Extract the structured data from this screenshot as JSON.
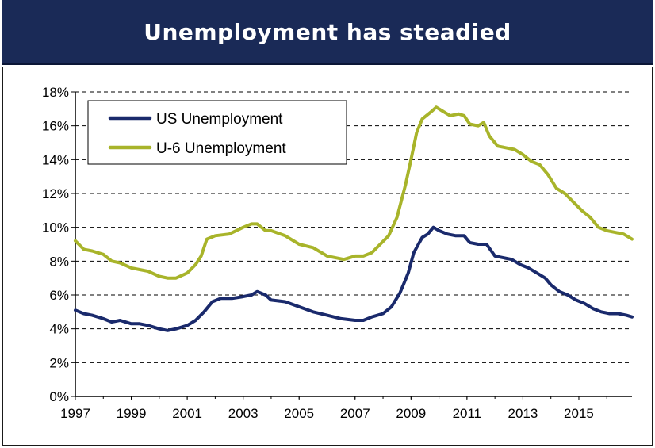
{
  "title": "Unemployment has steadied",
  "colors": {
    "title_bg": "#1a2a57",
    "us": "#1a2a6c",
    "u6": "#a8b42a",
    "grid": "#000000"
  },
  "chart_data": {
    "type": "line",
    "title": "Unemployment has steadied",
    "xlabel": "",
    "ylabel": "",
    "xlim": [
      1997,
      2016.9
    ],
    "ylim": [
      0,
      18
    ],
    "x_ticks": [
      "1997",
      "1999",
      "2001",
      "2003",
      "2005",
      "2007",
      "2009",
      "2011",
      "2013",
      "2015"
    ],
    "y_ticks": [
      "0%",
      "2%",
      "4%",
      "6%",
      "8%",
      "10%",
      "12%",
      "14%",
      "16%",
      "18%"
    ],
    "grid": "horizontal dashed",
    "legend_position": "top-left",
    "series": [
      {
        "name": "US Unemployment",
        "color": "#1a2a6c",
        "points": [
          [
            1997.0,
            5.1
          ],
          [
            1997.3,
            4.9
          ],
          [
            1997.6,
            4.8
          ],
          [
            1998.0,
            4.6
          ],
          [
            1998.3,
            4.4
          ],
          [
            1998.6,
            4.5
          ],
          [
            1999.0,
            4.3
          ],
          [
            1999.3,
            4.3
          ],
          [
            1999.6,
            4.2
          ],
          [
            2000.0,
            4.0
          ],
          [
            2000.3,
            3.9
          ],
          [
            2000.6,
            4.0
          ],
          [
            2001.0,
            4.2
          ],
          [
            2001.3,
            4.5
          ],
          [
            2001.6,
            5.0
          ],
          [
            2001.9,
            5.6
          ],
          [
            2002.2,
            5.8
          ],
          [
            2002.6,
            5.8
          ],
          [
            2003.0,
            5.9
          ],
          [
            2003.3,
            6.0
          ],
          [
            2003.5,
            6.2
          ],
          [
            2003.8,
            6.0
          ],
          [
            2004.0,
            5.7
          ],
          [
            2004.5,
            5.6
          ],
          [
            2005.0,
            5.3
          ],
          [
            2005.5,
            5.0
          ],
          [
            2006.0,
            4.8
          ],
          [
            2006.5,
            4.6
          ],
          [
            2007.0,
            4.5
          ],
          [
            2007.3,
            4.5
          ],
          [
            2007.6,
            4.7
          ],
          [
            2008.0,
            4.9
          ],
          [
            2008.3,
            5.3
          ],
          [
            2008.6,
            6.1
          ],
          [
            2008.9,
            7.3
          ],
          [
            2009.1,
            8.5
          ],
          [
            2009.4,
            9.4
          ],
          [
            2009.6,
            9.6
          ],
          [
            2009.8,
            10.0
          ],
          [
            2010.0,
            9.8
          ],
          [
            2010.3,
            9.6
          ],
          [
            2010.6,
            9.5
          ],
          [
            2010.9,
            9.5
          ],
          [
            2011.1,
            9.1
          ],
          [
            2011.4,
            9.0
          ],
          [
            2011.7,
            9.0
          ],
          [
            2012.0,
            8.3
          ],
          [
            2012.3,
            8.2
          ],
          [
            2012.6,
            8.1
          ],
          [
            2012.9,
            7.8
          ],
          [
            2013.2,
            7.6
          ],
          [
            2013.5,
            7.3
          ],
          [
            2013.8,
            7.0
          ],
          [
            2014.0,
            6.6
          ],
          [
            2014.3,
            6.2
          ],
          [
            2014.6,
            6.0
          ],
          [
            2014.9,
            5.7
          ],
          [
            2015.2,
            5.5
          ],
          [
            2015.5,
            5.2
          ],
          [
            2015.8,
            5.0
          ],
          [
            2016.1,
            4.9
          ],
          [
            2016.4,
            4.9
          ],
          [
            2016.7,
            4.8
          ],
          [
            2016.9,
            4.7
          ]
        ]
      },
      {
        "name": "U-6 Unemployment",
        "color": "#a8b42a",
        "points": [
          [
            1997.0,
            9.2
          ],
          [
            1997.3,
            8.7
          ],
          [
            1997.6,
            8.6
          ],
          [
            1998.0,
            8.4
          ],
          [
            1998.3,
            8.0
          ],
          [
            1998.6,
            7.9
          ],
          [
            1999.0,
            7.6
          ],
          [
            1999.3,
            7.5
          ],
          [
            1999.6,
            7.4
          ],
          [
            2000.0,
            7.1
          ],
          [
            2000.3,
            7.0
          ],
          [
            2000.6,
            7.0
          ],
          [
            2001.0,
            7.3
          ],
          [
            2001.3,
            7.8
          ],
          [
            2001.5,
            8.3
          ],
          [
            2001.7,
            9.3
          ],
          [
            2002.0,
            9.5
          ],
          [
            2002.5,
            9.6
          ],
          [
            2003.0,
            10.0
          ],
          [
            2003.3,
            10.2
          ],
          [
            2003.5,
            10.2
          ],
          [
            2003.8,
            9.8
          ],
          [
            2004.0,
            9.8
          ],
          [
            2004.5,
            9.5
          ],
          [
            2005.0,
            9.0
          ],
          [
            2005.5,
            8.8
          ],
          [
            2006.0,
            8.3
          ],
          [
            2006.3,
            8.2
          ],
          [
            2006.6,
            8.1
          ],
          [
            2007.0,
            8.3
          ],
          [
            2007.3,
            8.3
          ],
          [
            2007.6,
            8.5
          ],
          [
            2007.9,
            9.0
          ],
          [
            2008.2,
            9.5
          ],
          [
            2008.5,
            10.6
          ],
          [
            2008.8,
            12.5
          ],
          [
            2009.0,
            14.0
          ],
          [
            2009.2,
            15.6
          ],
          [
            2009.4,
            16.4
          ],
          [
            2009.7,
            16.8
          ],
          [
            2009.9,
            17.1
          ],
          [
            2010.1,
            16.9
          ],
          [
            2010.4,
            16.6
          ],
          [
            2010.7,
            16.7
          ],
          [
            2010.9,
            16.6
          ],
          [
            2011.1,
            16.1
          ],
          [
            2011.4,
            16.0
          ],
          [
            2011.6,
            16.2
          ],
          [
            2011.8,
            15.4
          ],
          [
            2012.1,
            14.8
          ],
          [
            2012.4,
            14.7
          ],
          [
            2012.7,
            14.6
          ],
          [
            2013.0,
            14.3
          ],
          [
            2013.3,
            13.9
          ],
          [
            2013.6,
            13.7
          ],
          [
            2013.9,
            13.1
          ],
          [
            2014.2,
            12.3
          ],
          [
            2014.5,
            12.0
          ],
          [
            2014.8,
            11.5
          ],
          [
            2015.1,
            11.0
          ],
          [
            2015.4,
            10.6
          ],
          [
            2015.7,
            10.0
          ],
          [
            2016.0,
            9.8
          ],
          [
            2016.3,
            9.7
          ],
          [
            2016.6,
            9.6
          ],
          [
            2016.9,
            9.3
          ]
        ]
      }
    ]
  }
}
